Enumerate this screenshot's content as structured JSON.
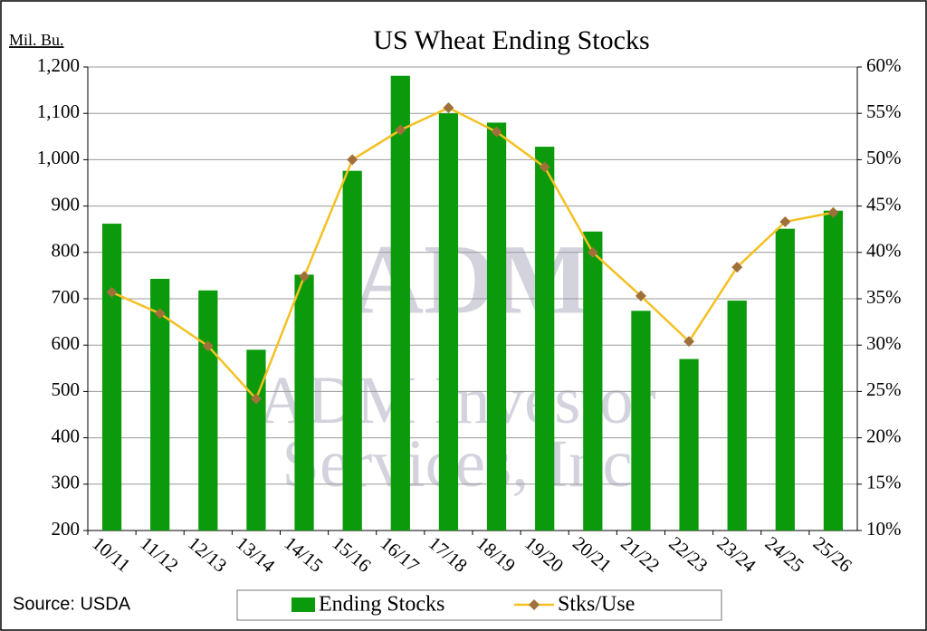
{
  "chart_data": {
    "type": "bar_line",
    "title": "US Wheat Ending Stocks",
    "y_label": "Mil. Bu.",
    "source": "Source: USDA",
    "watermark": [
      "ADM",
      "ADM Investor",
      "Services, Inc"
    ],
    "categories": [
      "10/11",
      "11/12",
      "12/13",
      "13/14",
      "14/15",
      "15/16",
      "16/17",
      "17/18",
      "18/19",
      "19/20",
      "20/21",
      "21/22",
      "22/23",
      "23/24",
      "24/25",
      "25/26"
    ],
    "series": [
      {
        "name": "Ending Stocks",
        "type": "bar",
        "color": "#0b9a0b",
        "values": [
          862,
          743,
          718,
          590,
          752,
          976,
          1181,
          1100,
          1080,
          1028,
          845,
          674,
          570,
          696,
          851,
          890
        ]
      },
      {
        "name": "Stks/Use",
        "type": "line",
        "axis": "y2",
        "color": "#f5c022",
        "marker_color": "#a0703a",
        "values": [
          35.7,
          33.4,
          29.9,
          24.2,
          37.4,
          50.0,
          53.2,
          55.6,
          53.0,
          49.2,
          40.0,
          35.3,
          30.4,
          38.4,
          43.3,
          44.3
        ]
      }
    ],
    "ylim": [
      200,
      1200
    ],
    "yticks": [
      200,
      300,
      400,
      500,
      600,
      700,
      800,
      900,
      {
        "value": 1000,
        "label": "1,000"
      },
      {
        "value": 1100,
        "label": "1,100"
      },
      {
        "value": 1200,
        "label": "1,200"
      }
    ],
    "y2lim": [
      10,
      60
    ],
    "y2ticks": [
      {
        "value": 10,
        "label": "10%"
      },
      {
        "value": 15,
        "label": "15%"
      },
      {
        "value": 20,
        "label": "20%"
      },
      {
        "value": 25,
        "label": "25%"
      },
      {
        "value": 30,
        "label": "30%"
      },
      {
        "value": 35,
        "label": "35%"
      },
      {
        "value": 40,
        "label": "40%"
      },
      {
        "value": 45,
        "label": "45%"
      },
      {
        "value": 50,
        "label": "50%"
      },
      {
        "value": 55,
        "label": "55%"
      },
      {
        "value": 60,
        "label": "60%"
      }
    ],
    "grid": true,
    "legend": "bottom"
  }
}
